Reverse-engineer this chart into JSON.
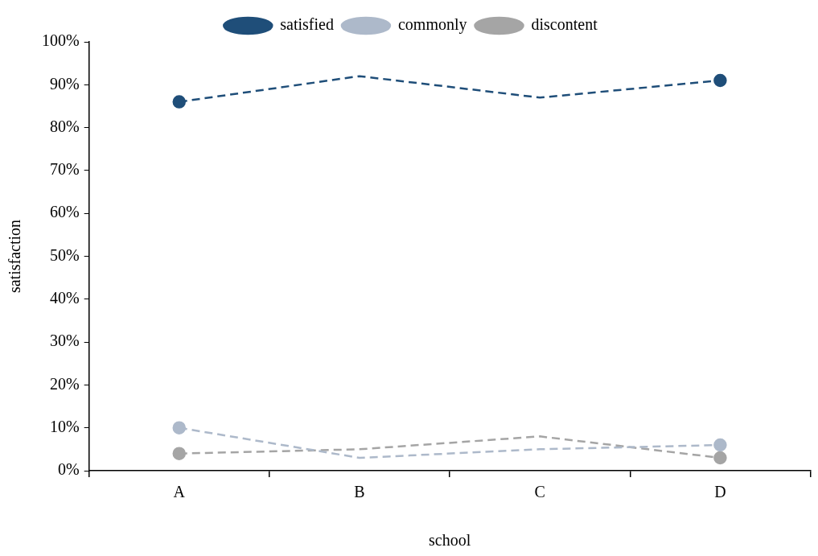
{
  "chart_data": {
    "type": "line",
    "xlabel": "school",
    "ylabel": "satisfaction",
    "categories": [
      "A",
      "B",
      "C",
      "D"
    ],
    "series": [
      {
        "name": "satisfied",
        "color": "#1f4e79",
        "values": [
          86,
          92,
          87,
          91
        ]
      },
      {
        "name": "commonly",
        "color": "#adb9ca",
        "values": [
          10,
          3,
          5,
          6
        ]
      },
      {
        "name": "discontent",
        "color": "#a5a5a5",
        "values": [
          4,
          5,
          8,
          3
        ]
      }
    ],
    "ylim": [
      0,
      100
    ],
    "yticks": [
      {
        "value": 0,
        "label": "0%"
      },
      {
        "value": 10,
        "label": "10%"
      },
      {
        "value": 20,
        "label": "20%"
      },
      {
        "value": 30,
        "label": "30%"
      },
      {
        "value": 40,
        "label": "40%"
      },
      {
        "value": 50,
        "label": "50%"
      },
      {
        "value": 60,
        "label": "60%"
      },
      {
        "value": 70,
        "label": "70%"
      },
      {
        "value": 80,
        "label": "80%"
      },
      {
        "value": 90,
        "label": "90%"
      },
      {
        "value": 100,
        "label": "100%"
      }
    ],
    "grid": false,
    "legend": "top",
    "marker": "circle",
    "line_style": "dashed"
  }
}
